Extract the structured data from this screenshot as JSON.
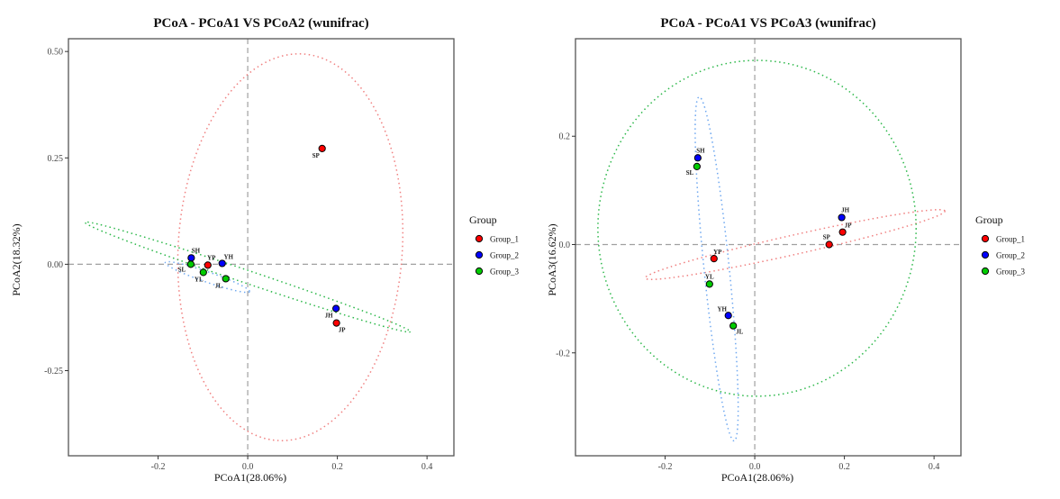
{
  "colors": {
    "Group_1": "#ff0000",
    "Group_2": "#0000ff",
    "Group_3": "#00cc00",
    "ellipse_Group_1": "#f08080",
    "ellipse_Group_2": "#6fa8f0",
    "ellipse_Group_3": "#2cb84a",
    "refline": "#a0a0a0",
    "frame": "#555555"
  },
  "chart_data": [
    {
      "type": "scatter",
      "title": "PCoA - PCoA1 VS PCoA2 (wunifrac)",
      "xlabel": "PCoA1(28.06%)",
      "ylabel": "PCoA2(18.32%)",
      "xlim": [
        -0.4,
        0.46
      ],
      "ylim": [
        -0.45,
        0.53
      ],
      "xticks": [
        -0.2,
        0.0,
        0.2,
        0.4
      ],
      "xtick_labels": [
        "-0.2",
        "0.0",
        "0.2",
        "0.4"
      ],
      "yticks": [
        0.5,
        0.25,
        0.0,
        -0.25
      ],
      "ytick_labels": [
        "0.50",
        "0.25",
        "0.00",
        "-0.25"
      ],
      "grid": false,
      "reference_lines": {
        "x": 0,
        "y": 0
      },
      "legend": {
        "title": "Group",
        "position": "right",
        "entries": [
          "Group_1",
          "Group_2",
          "Group_3"
        ]
      },
      "points": [
        {
          "label": "SP",
          "group": "Group_1",
          "x": 0.166,
          "y": 0.272
        },
        {
          "label": "SH",
          "group": "Group_2",
          "x": -0.126,
          "y": 0.015
        },
        {
          "label": "SL",
          "group": "Group_3",
          "x": -0.127,
          "y": 0.0
        },
        {
          "label": "YP",
          "group": "Group_1",
          "x": -0.089,
          "y": -0.002
        },
        {
          "label": "YH",
          "group": "Group_2",
          "x": -0.057,
          "y": 0.002
        },
        {
          "label": "YL",
          "group": "Group_3",
          "x": -0.099,
          "y": -0.019
        },
        {
          "label": "JL",
          "group": "Group_3",
          "x": -0.049,
          "y": -0.034
        },
        {
          "label": "JH",
          "group": "Group_2",
          "x": 0.197,
          "y": -0.104
        },
        {
          "label": "JP",
          "group": "Group_1",
          "x": 0.198,
          "y": -0.138
        }
      ],
      "ellipses": [
        {
          "group": "Group_1",
          "cx": 0.095,
          "cy": 0.04,
          "rx": 0.25,
          "ry": 0.455,
          "angle_deg": -4
        },
        {
          "group": "Group_2",
          "cx": -0.09,
          "cy": -0.03,
          "rx": 0.1,
          "ry": 0.012,
          "angle_deg": -20
        },
        {
          "group": "Group_3",
          "cx": 0.0,
          "cy": -0.03,
          "rx": 0.385,
          "ry": 0.015,
          "angle_deg": -19.5
        }
      ]
    },
    {
      "type": "scatter",
      "title": "PCoA - PCoA1 VS PCoA3 (wunifrac)",
      "xlabel": "PCoA1(28.06%)",
      "ylabel": "PCoA3(16.62%)",
      "xlim": [
        -0.4,
        0.46
      ],
      "ylim": [
        -0.39,
        0.38
      ],
      "xticks": [
        -0.2,
        0.0,
        0.2,
        0.4
      ],
      "xtick_labels": [
        "-0.2",
        "0.0",
        "0.2",
        "0.4"
      ],
      "yticks": [
        0.2,
        0.0,
        -0.2
      ],
      "ytick_labels": [
        "0.2",
        "0.0",
        "-0.2"
      ],
      "grid": false,
      "reference_lines": {
        "x": 0,
        "y": 0
      },
      "legend": {
        "title": "Group",
        "position": "right",
        "entries": [
          "Group_1",
          "Group_2",
          "Group_3"
        ]
      },
      "points": [
        {
          "label": "SH",
          "group": "Group_2",
          "x": -0.127,
          "y": 0.16
        },
        {
          "label": "SL",
          "group": "Group_3",
          "x": -0.129,
          "y": 0.144
        },
        {
          "label": "JH",
          "group": "Group_2",
          "x": 0.194,
          "y": 0.05
        },
        {
          "label": "JP",
          "group": "Group_1",
          "x": 0.196,
          "y": 0.023
        },
        {
          "label": "SP",
          "group": "Group_1",
          "x": 0.166,
          "y": 0.0
        },
        {
          "label": "YP",
          "group": "Group_1",
          "x": -0.091,
          "y": -0.026
        },
        {
          "label": "YL",
          "group": "Group_3",
          "x": -0.101,
          "y": -0.073
        },
        {
          "label": "YH",
          "group": "Group_2",
          "x": -0.059,
          "y": -0.131
        },
        {
          "label": "JL",
          "group": "Group_3",
          "x": -0.048,
          "y": -0.15
        }
      ],
      "ellipses": [
        {
          "group": "Group_1",
          "cx": 0.09,
          "cy": 0.0,
          "rx": 0.34,
          "ry": 0.018,
          "angle_deg": 10.5
        },
        {
          "group": "Group_2",
          "cx": -0.085,
          "cy": -0.045,
          "rx": 0.32,
          "ry": 0.028,
          "angle_deg": -83
        },
        {
          "group": "Group_3",
          "cx": 0.005,
          "cy": 0.03,
          "rx": 0.355,
          "ry": 0.31,
          "angle_deg": 0
        }
      ]
    }
  ]
}
